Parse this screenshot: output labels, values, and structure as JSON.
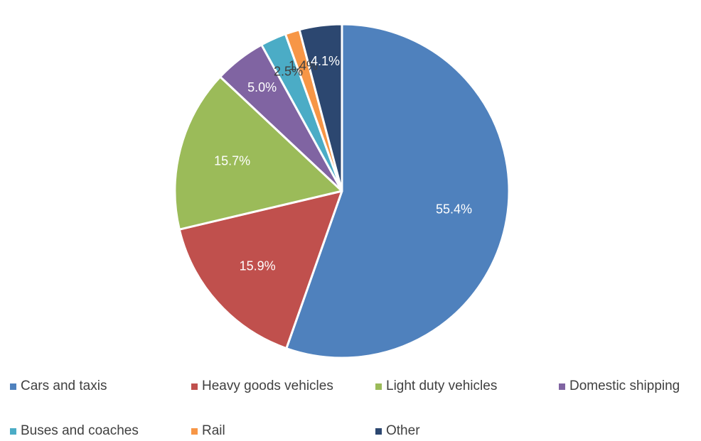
{
  "chart_data": {
    "type": "pie",
    "categories": [
      "Cars and taxis",
      "Heavy goods vehicles",
      "Light duty vehicles",
      "Domestic shipping",
      "Buses and coaches",
      "Rail",
      "Other"
    ],
    "values": [
      55.4,
      15.9,
      15.7,
      5.0,
      2.5,
      1.4,
      4.1
    ],
    "labels": [
      "55.4%",
      "15.9%",
      "15.7%",
      "5.0%",
      "2.5%",
      "1.4%",
      "4.1%"
    ],
    "colors": [
      "#4F81BD",
      "#C0504D",
      "#9BBB59",
      "#8064A2",
      "#4BACC6",
      "#F79646",
      "#2C4770"
    ],
    "label_colors": [
      "#ffffff",
      "#ffffff",
      "#ffffff",
      "#ffffff",
      "#404040",
      "#404040",
      "#ffffff"
    ],
    "legend_position": "bottom",
    "start_angle": "12 o'clock",
    "direction": "clockwise"
  }
}
